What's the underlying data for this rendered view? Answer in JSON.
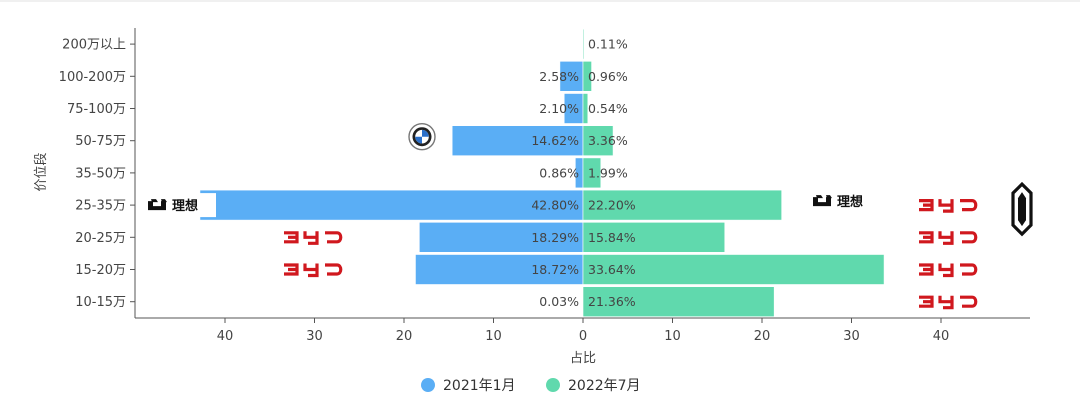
{
  "chart_data": {
    "type": "bar",
    "orientation": "horizontal",
    "layout": "diverging",
    "categories": [
      "200万以上",
      "100-200万",
      "75-100万",
      "50-75万",
      "35-50万",
      "25-35万",
      "20-25万",
      "15-20万",
      "10-15万"
    ],
    "series": [
      {
        "name": "2021年1月",
        "color": "#5aaef5",
        "side": "left",
        "values": [
          null,
          2.58,
          2.1,
          14.62,
          0.86,
          42.8,
          18.29,
          18.72,
          0.03
        ],
        "labels": [
          "",
          "2.58%",
          "2.10%",
          "14.62%",
          "0.86%",
          "42.80%",
          "18.29%",
          "18.72%",
          "0.03%"
        ]
      },
      {
        "name": "2022年7月",
        "color": "#60d9ad",
        "side": "right",
        "values": [
          0.11,
          0.96,
          0.54,
          3.36,
          1.99,
          22.2,
          15.84,
          33.64,
          21.36
        ],
        "labels": [
          "0.11%",
          "0.96%",
          "0.54%",
          "3.36%",
          "1.99%",
          "22.20%",
          "15.84%",
          "33.64%",
          "21.36%"
        ]
      }
    ],
    "xlabel": "占比",
    "ylabel": "价位段",
    "xlim": [
      -50,
      50
    ],
    "xticks": [
      -40,
      -30,
      -20,
      -10,
      0,
      10,
      20,
      30,
      40
    ],
    "xtick_labels": [
      "40",
      "30",
      "20",
      "10",
      "0",
      "10",
      "20",
      "30",
      "40"
    ],
    "grid": false,
    "legend": "bottom-center",
    "brand_marks": [
      {
        "brand": "li-auto",
        "text": "理想",
        "series": "2021年1月",
        "category": "25-35万"
      },
      {
        "brand": "bmw",
        "series": "2021年1月",
        "category": "50-75万"
      },
      {
        "brand": "byd",
        "series": "2021年1月",
        "category": "20-25万"
      },
      {
        "brand": "byd",
        "series": "2021年1月",
        "category": "15-20万"
      },
      {
        "brand": "li-auto",
        "text": "理想",
        "series": "2022年7月",
        "category": "25-35万"
      },
      {
        "brand": "byd",
        "series": "2022年7月",
        "category": "25-35万"
      },
      {
        "brand": "aito",
        "series": "2022年7月",
        "category": "25-35万"
      },
      {
        "brand": "byd",
        "series": "2022年7月",
        "category": "20-25万"
      },
      {
        "brand": "byd",
        "series": "2022年7月",
        "category": "15-20万"
      },
      {
        "brand": "byd",
        "series": "2022年7月",
        "category": "10-15万"
      }
    ]
  }
}
